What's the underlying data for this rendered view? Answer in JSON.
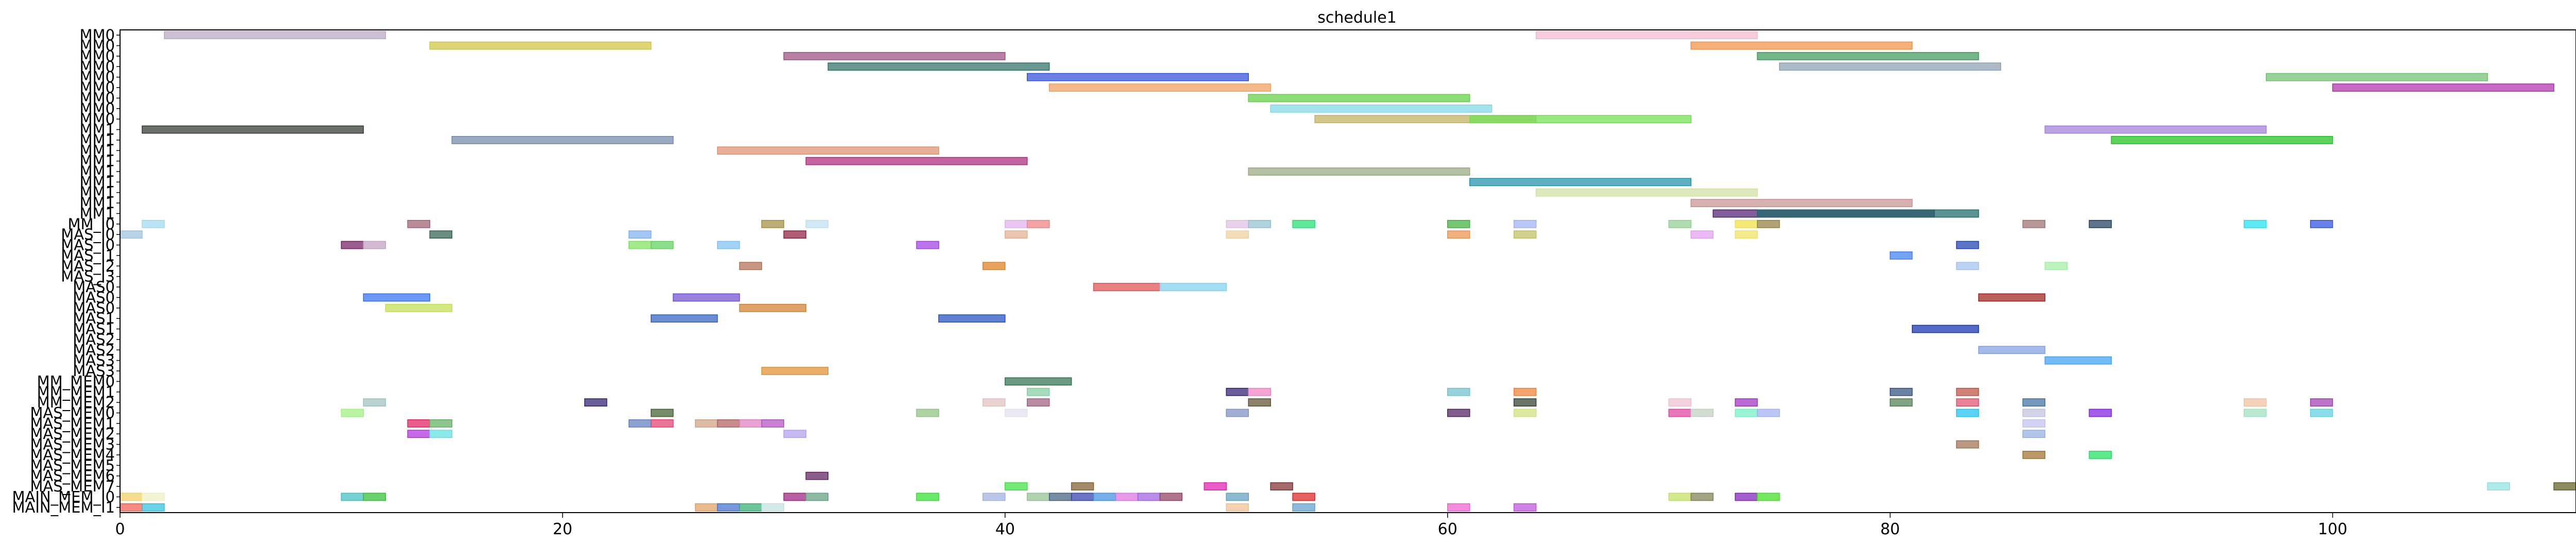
{
  "chart_data": {
    "type": "gantt",
    "title": "schedule1",
    "xlabel": "",
    "ylabel": "",
    "xlim": [
      0,
      111
    ],
    "xticks": [
      0,
      20,
      40,
      60,
      80,
      100
    ],
    "grid": false,
    "rows": [
      "MM0",
      "MM0",
      "MM0",
      "MM0",
      "MM0",
      "MM0",
      "MM0",
      "MM0",
      "MM0",
      "MM1",
      "MM1",
      "MM1",
      "MM1",
      "MM1",
      "MM1",
      "MM1",
      "MM1",
      "MM1",
      "MM_I0",
      "MAS_I0",
      "MAS_I0",
      "MAS_I1",
      "MAS_I2",
      "MAS_I3",
      "MAS0",
      "MAS0",
      "MAS0",
      "MAS1",
      "MAS1",
      "MAS2",
      "MAS2",
      "MAS3",
      "MAS3",
      "MM_MEM0",
      "MM_MEM1",
      "MM_MEM2",
      "MAS_MEM0",
      "MAS_MEM1",
      "MAS_MEM2",
      "MAS_MEM3",
      "MAS_MEM4",
      "MAS_MEM5",
      "MAS_MEM6",
      "MAS_MEM7",
      "MAIN_MEM_I0",
      "MAIN_MEM_I1"
    ],
    "tasks": [
      {
        "row": 0,
        "start": 2,
        "end": 12,
        "color": "#b8a9c0"
      },
      {
        "row": 0,
        "start": 64,
        "end": 74,
        "color": "#f2b8d0"
      },
      {
        "row": 1,
        "start": 14,
        "end": 24,
        "color": "#cfc640"
      },
      {
        "row": 1,
        "start": 71,
        "end": 81,
        "color": "#f29040"
      },
      {
        "row": 2,
        "start": 30,
        "end": 40,
        "color": "#9a5080"
      },
      {
        "row": 2,
        "start": 74,
        "end": 84,
        "color": "#3f9a5a"
      },
      {
        "row": 3,
        "start": 32,
        "end": 42,
        "color": "#2f6f65"
      },
      {
        "row": 3,
        "start": 75,
        "end": 85,
        "color": "#8aa0b0"
      },
      {
        "row": 4,
        "start": 41,
        "end": 51,
        "color": "#3050d8"
      },
      {
        "row": 4,
        "start": 97,
        "end": 107,
        "color": "#70c070"
      },
      {
        "row": 5,
        "start": 42,
        "end": 52,
        "color": "#f0a060"
      },
      {
        "row": 5,
        "start": 100,
        "end": 110,
        "color": "#b030b0"
      },
      {
        "row": 6,
        "start": 51,
        "end": 61,
        "color": "#60d040"
      },
      {
        "row": 7,
        "start": 52,
        "end": 62,
        "color": "#80d8e8"
      },
      {
        "row": 8,
        "start": 54,
        "end": 64,
        "color": "#c0b060"
      },
      {
        "row": 8,
        "start": 61,
        "end": 71,
        "color": "#70e050"
      },
      {
        "row": 9,
        "start": 1,
        "end": 11,
        "color": "#303830"
      },
      {
        "row": 9,
        "start": 87,
        "end": 97,
        "color": "#a080d8"
      },
      {
        "row": 10,
        "start": 15,
        "end": 25,
        "color": "#7088a8"
      },
      {
        "row": 10,
        "start": 90,
        "end": 100,
        "color": "#20c020"
      },
      {
        "row": 11,
        "start": 27,
        "end": 37,
        "color": "#e09070"
      },
      {
        "row": 12,
        "start": 31,
        "end": 41,
        "color": "#b02880"
      },
      {
        "row": 13,
        "start": 51,
        "end": 61,
        "color": "#98a880"
      },
      {
        "row": 14,
        "start": 61,
        "end": 71,
        "color": "#2090a8"
      },
      {
        "row": 15,
        "start": 64,
        "end": 74,
        "color": "#d0e0a0"
      },
      {
        "row": 16,
        "start": 71,
        "end": 81,
        "color": "#c89090"
      },
      {
        "row": 17,
        "start": 72,
        "end": 82,
        "color": "#502070"
      },
      {
        "row": 17,
        "start": 74,
        "end": 84,
        "color": "#1a6a6a"
      },
      {
        "row": 18,
        "start": 1,
        "end": 2,
        "color": "#a0d8f0"
      },
      {
        "row": 18,
        "start": 13,
        "end": 14,
        "color": "#a06070"
      },
      {
        "row": 18,
        "start": 29,
        "end": 30,
        "color": "#a09040"
      },
      {
        "row": 18,
        "start": 31,
        "end": 32,
        "color": "#c0e0f0"
      },
      {
        "row": 18,
        "start": 40,
        "end": 41,
        "color": "#e0b0f0"
      },
      {
        "row": 18,
        "start": 41,
        "end": 42,
        "color": "#f08080"
      },
      {
        "row": 18,
        "start": 50,
        "end": 51,
        "color": "#e0c0e0"
      },
      {
        "row": 18,
        "start": 51,
        "end": 52,
        "color": "#90c0d0"
      },
      {
        "row": 18,
        "start": 53,
        "end": 54,
        "color": "#20e070"
      },
      {
        "row": 18,
        "start": 60,
        "end": 61,
        "color": "#40b040"
      },
      {
        "row": 18,
        "start": 63,
        "end": 64,
        "color": "#a0b0f0"
      },
      {
        "row": 18,
        "start": 70,
        "end": 71,
        "color": "#90d090"
      },
      {
        "row": 18,
        "start": 73,
        "end": 74,
        "color": "#f0e040"
      },
      {
        "row": 18,
        "start": 74,
        "end": 75,
        "color": "#908040"
      },
      {
        "row": 18,
        "start": 96,
        "end": 97,
        "color": "#20e0f0"
      },
      {
        "row": 18,
        "start": 99,
        "end": 100,
        "color": "#3050e0"
      },
      {
        "row": 19,
        "start": 0,
        "end": 1,
        "color": "#a0c0e0"
      },
      {
        "row": 19,
        "start": 14,
        "end": 15,
        "color": "#306050"
      },
      {
        "row": 19,
        "start": 23,
        "end": 24,
        "color": "#80b0f0"
      },
      {
        "row": 19,
        "start": 30,
        "end": 31,
        "color": "#902040"
      },
      {
        "row": 19,
        "start": 40,
        "end": 41,
        "color": "#e0b090"
      },
      {
        "row": 19,
        "start": 50,
        "end": 51,
        "color": "#f0d0a0"
      },
      {
        "row": 19,
        "start": 60,
        "end": 61,
        "color": "#f09050"
      },
      {
        "row": 19,
        "start": 63,
        "end": 64,
        "color": "#c0c060"
      },
      {
        "row": 19,
        "start": 71,
        "end": 72,
        "color": "#e0a0f0"
      },
      {
        "row": 19,
        "start": 73,
        "end": 74,
        "color": "#f0e060"
      },
      {
        "row": 20,
        "start": 10,
        "end": 11,
        "color": "#702060"
      },
      {
        "row": 20,
        "start": 11,
        "end": 12,
        "color": "#c0a0c0"
      },
      {
        "row": 20,
        "start": 23,
        "end": 24,
        "color": "#80e060"
      },
      {
        "row": 20,
        "start": 24,
        "end": 25,
        "color": "#60d060"
      },
      {
        "row": 20,
        "start": 27,
        "end": 28,
        "color": "#80c0f0"
      },
      {
        "row": 20,
        "start": 36,
        "end": 37,
        "color": "#a040e0"
      },
      {
        "row": 20,
        "start": 83,
        "end": 84,
        "color": "#2040b0"
      },
      {
        "row": 18,
        "start": 86,
        "end": 87,
        "color": "#a07070"
      },
      {
        "row": 18,
        "start": 89,
        "end": 90,
        "color": "#204060"
      },
      {
        "row": 21,
        "start": 80,
        "end": 81,
        "color": "#4080f0"
      },
      {
        "row": 22,
        "start": 28,
        "end": 29,
        "color": "#b07050"
      },
      {
        "row": 22,
        "start": 39,
        "end": 40,
        "color": "#e08020"
      },
      {
        "row": 22,
        "start": 83,
        "end": 84,
        "color": "#a0c0f0"
      },
      {
        "row": 22,
        "start": 87,
        "end": 88,
        "color": "#a0f0a0"
      },
      {
        "row": 24,
        "start": 44,
        "end": 47,
        "color": "#e05050"
      },
      {
        "row": 24,
        "start": 47,
        "end": 50,
        "color": "#80d0f0"
      },
      {
        "row": 25,
        "start": 11,
        "end": 14,
        "color": "#3070f0"
      },
      {
        "row": 25,
        "start": 25,
        "end": 28,
        "color": "#7050d0"
      },
      {
        "row": 25,
        "start": 84,
        "end": 87,
        "color": "#a02020"
      },
      {
        "row": 26,
        "start": 12,
        "end": 15,
        "color": "#c0e050"
      },
      {
        "row": 26,
        "start": 28,
        "end": 31,
        "color": "#d08030"
      },
      {
        "row": 27,
        "start": 24,
        "end": 27,
        "color": "#3060c0"
      },
      {
        "row": 27,
        "start": 37,
        "end": 40,
        "color": "#2050c0"
      },
      {
        "row": 28,
        "start": 81,
        "end": 84,
        "color": "#1030b0"
      },
      {
        "row": 30,
        "start": 84,
        "end": 87,
        "color": "#80a0e0"
      },
      {
        "row": 31,
        "start": 87,
        "end": 90,
        "color": "#40a0f0"
      },
      {
        "row": 32,
        "start": 29,
        "end": 32,
        "color": "#e09030"
      },
      {
        "row": 33,
        "start": 40,
        "end": 43,
        "color": "#307050"
      },
      {
        "row": 34,
        "start": 41,
        "end": 42,
        "color": "#80d0a0"
      },
      {
        "row": 34,
        "start": 50,
        "end": 51,
        "color": "#302070"
      },
      {
        "row": 34,
        "start": 51,
        "end": 52,
        "color": "#f080c0"
      },
      {
        "row": 34,
        "start": 60,
        "end": 61,
        "color": "#70c0d0"
      },
      {
        "row": 34,
        "start": 63,
        "end": 64,
        "color": "#f08030"
      },
      {
        "row": 34,
        "start": 80,
        "end": 81,
        "color": "#305080"
      },
      {
        "row": 34,
        "start": 83,
        "end": 84,
        "color": "#c05040"
      },
      {
        "row": 35,
        "start": 11,
        "end": 12,
        "color": "#a0c0c0"
      },
      {
        "row": 35,
        "start": 21,
        "end": 22,
        "color": "#302070"
      },
      {
        "row": 35,
        "start": 39,
        "end": 40,
        "color": "#e0c0c0"
      },
      {
        "row": 35,
        "start": 41,
        "end": 42,
        "color": "#a06080"
      },
      {
        "row": 35,
        "start": 51,
        "end": 52,
        "color": "#605030"
      },
      {
        "row": 35,
        "start": 63,
        "end": 64,
        "color": "#304030"
      },
      {
        "row": 35,
        "start": 70,
        "end": 71,
        "color": "#f0c0d0"
      },
      {
        "row": 35,
        "start": 73,
        "end": 74,
        "color": "#a030c0"
      },
      {
        "row": 35,
        "start": 80,
        "end": 81,
        "color": "#508050"
      },
      {
        "row": 35,
        "start": 83,
        "end": 84,
        "color": "#e05070"
      },
      {
        "row": 35,
        "start": 86,
        "end": 87,
        "color": "#4070a0"
      },
      {
        "row": 35,
        "start": 96,
        "end": 97,
        "color": "#f0c0a0"
      },
      {
        "row": 35,
        "start": 99,
        "end": 100,
        "color": "#a040b0"
      },
      {
        "row": 36,
        "start": 10,
        "end": 11,
        "color": "#a0f080"
      },
      {
        "row": 36,
        "start": 24,
        "end": 25,
        "color": "#406030"
      },
      {
        "row": 36,
        "start": 36,
        "end": 37,
        "color": "#90c080"
      },
      {
        "row": 36,
        "start": 40,
        "end": 41,
        "color": "#e0e0f0"
      },
      {
        "row": 36,
        "start": 50,
        "end": 51,
        "color": "#8090c0"
      },
      {
        "row": 36,
        "start": 60,
        "end": 61,
        "color": "#502060"
      },
      {
        "row": 36,
        "start": 63,
        "end": 64,
        "color": "#d0e080"
      },
      {
        "row": 36,
        "start": 70,
        "end": 71,
        "color": "#e040a0"
      },
      {
        "row": 36,
        "start": 71,
        "end": 72,
        "color": "#c0d0c0"
      },
      {
        "row": 36,
        "start": 73,
        "end": 74,
        "color": "#70f0c0"
      },
      {
        "row": 36,
        "start": 74,
        "end": 75,
        "color": "#a0b0f0"
      },
      {
        "row": 36,
        "start": 83,
        "end": 84,
        "color": "#20c0f0"
      },
      {
        "row": 36,
        "start": 86,
        "end": 87,
        "color": "#c0c0e0"
      },
      {
        "row": 36,
        "start": 89,
        "end": 90,
        "color": "#8020e0"
      },
      {
        "row": 36,
        "start": 96,
        "end": 97,
        "color": "#a0e0c0"
      },
      {
        "row": 36,
        "start": 99,
        "end": 100,
        "color": "#60d0e0"
      },
      {
        "row": 37,
        "start": 13,
        "end": 14,
        "color": "#e02060"
      },
      {
        "row": 37,
        "start": 14,
        "end": 15,
        "color": "#60b060"
      },
      {
        "row": 37,
        "start": 23,
        "end": 24,
        "color": "#6080c0"
      },
      {
        "row": 37,
        "start": 24,
        "end": 25,
        "color": "#e04070"
      },
      {
        "row": 37,
        "start": 26,
        "end": 27,
        "color": "#d0a080"
      },
      {
        "row": 37,
        "start": 27,
        "end": 28,
        "color": "#b06060"
      },
      {
        "row": 37,
        "start": 28,
        "end": 29,
        "color": "#e080c0"
      },
      {
        "row": 37,
        "start": 29,
        "end": 30,
        "color": "#b050c0"
      },
      {
        "row": 37,
        "start": 86,
        "end": 87,
        "color": "#c0c0f0"
      },
      {
        "row": 38,
        "start": 13,
        "end": 14,
        "color": "#b030e0"
      },
      {
        "row": 38,
        "start": 14,
        "end": 15,
        "color": "#60e0e0"
      },
      {
        "row": 38,
        "start": 30,
        "end": 31,
        "color": "#b0a0f0"
      },
      {
        "row": 38,
        "start": 86,
        "end": 87,
        "color": "#90b0e0"
      },
      {
        "row": 39,
        "start": 83,
        "end": 84,
        "color": "#a07050"
      },
      {
        "row": 40,
        "start": 86,
        "end": 87,
        "color": "#a07030"
      },
      {
        "row": 40,
        "start": 89,
        "end": 90,
        "color": "#20e060"
      },
      {
        "row": 42,
        "start": 31,
        "end": 32,
        "color": "#602060"
      },
      {
        "row": 43,
        "start": 40,
        "end": 41,
        "color": "#40e040"
      },
      {
        "row": 43,
        "start": 43,
        "end": 44,
        "color": "#806030"
      },
      {
        "row": 43,
        "start": 49,
        "end": 50,
        "color": "#e020b0"
      },
      {
        "row": 43,
        "start": 52,
        "end": 53,
        "color": "#803030"
      },
      {
        "row": 43,
        "start": 107,
        "end": 108,
        "color": "#90e0e0"
      },
      {
        "row": 43,
        "start": 110,
        "end": 111,
        "color": "#606020"
      },
      {
        "row": 44,
        "start": 0,
        "end": 1,
        "color": "#f0d060"
      },
      {
        "row": 44,
        "start": 1,
        "end": 2,
        "color": "#f0f0c0"
      },
      {
        "row": 44,
        "start": 10,
        "end": 11,
        "color": "#40c0c0"
      },
      {
        "row": 44,
        "start": 11,
        "end": 12,
        "color": "#30c030"
      },
      {
        "row": 44,
        "start": 30,
        "end": 31,
        "color": "#a02080"
      },
      {
        "row": 44,
        "start": 31,
        "end": 32,
        "color": "#60a080"
      },
      {
        "row": 44,
        "start": 36,
        "end": 37,
        "color": "#30e030"
      },
      {
        "row": 44,
        "start": 39,
        "end": 40,
        "color": "#a0b0e0"
      },
      {
        "row": 44,
        "start": 41,
        "end": 42,
        "color": "#90c090"
      },
      {
        "row": 44,
        "start": 42,
        "end": 43,
        "color": "#406080"
      },
      {
        "row": 44,
        "start": 43,
        "end": 44,
        "color": "#3040b0"
      },
      {
        "row": 44,
        "start": 44,
        "end": 45,
        "color": "#4090e0"
      },
      {
        "row": 44,
        "start": 45,
        "end": 46,
        "color": "#e070e0"
      },
      {
        "row": 44,
        "start": 46,
        "end": 47,
        "color": "#a060e0"
      },
      {
        "row": 44,
        "start": 47,
        "end": 48,
        "color": "#904060"
      },
      {
        "row": 44,
        "start": 50,
        "end": 51,
        "color": "#60a0c0"
      },
      {
        "row": 44,
        "start": 53,
        "end": 54,
        "color": "#e02020"
      },
      {
        "row": 44,
        "start": 70,
        "end": 71,
        "color": "#c0e060"
      },
      {
        "row": 44,
        "start": 71,
        "end": 72,
        "color": "#808050"
      },
      {
        "row": 44,
        "start": 73,
        "end": 74,
        "color": "#8020c0"
      },
      {
        "row": 44,
        "start": 74,
        "end": 75,
        "color": "#40e020"
      },
      {
        "row": 45,
        "start": 0,
        "end": 1,
        "color": "#f06050"
      },
      {
        "row": 45,
        "start": 1,
        "end": 2,
        "color": "#30c0e0"
      },
      {
        "row": 45,
        "start": 26,
        "end": 27,
        "color": "#e0a060"
      },
      {
        "row": 45,
        "start": 27,
        "end": 28,
        "color": "#4070d0"
      },
      {
        "row": 45,
        "start": 28,
        "end": 29,
        "color": "#30b070"
      },
      {
        "row": 45,
        "start": 29,
        "end": 30,
        "color": "#c0e0e0"
      },
      {
        "row": 45,
        "start": 50,
        "end": 51,
        "color": "#f0c090"
      },
      {
        "row": 45,
        "start": 53,
        "end": 54,
        "color": "#60a0d0"
      },
      {
        "row": 45,
        "start": 60,
        "end": 61,
        "color": "#f060d0"
      },
      {
        "row": 45,
        "start": 63,
        "end": 64,
        "color": "#c050e0"
      }
    ]
  }
}
